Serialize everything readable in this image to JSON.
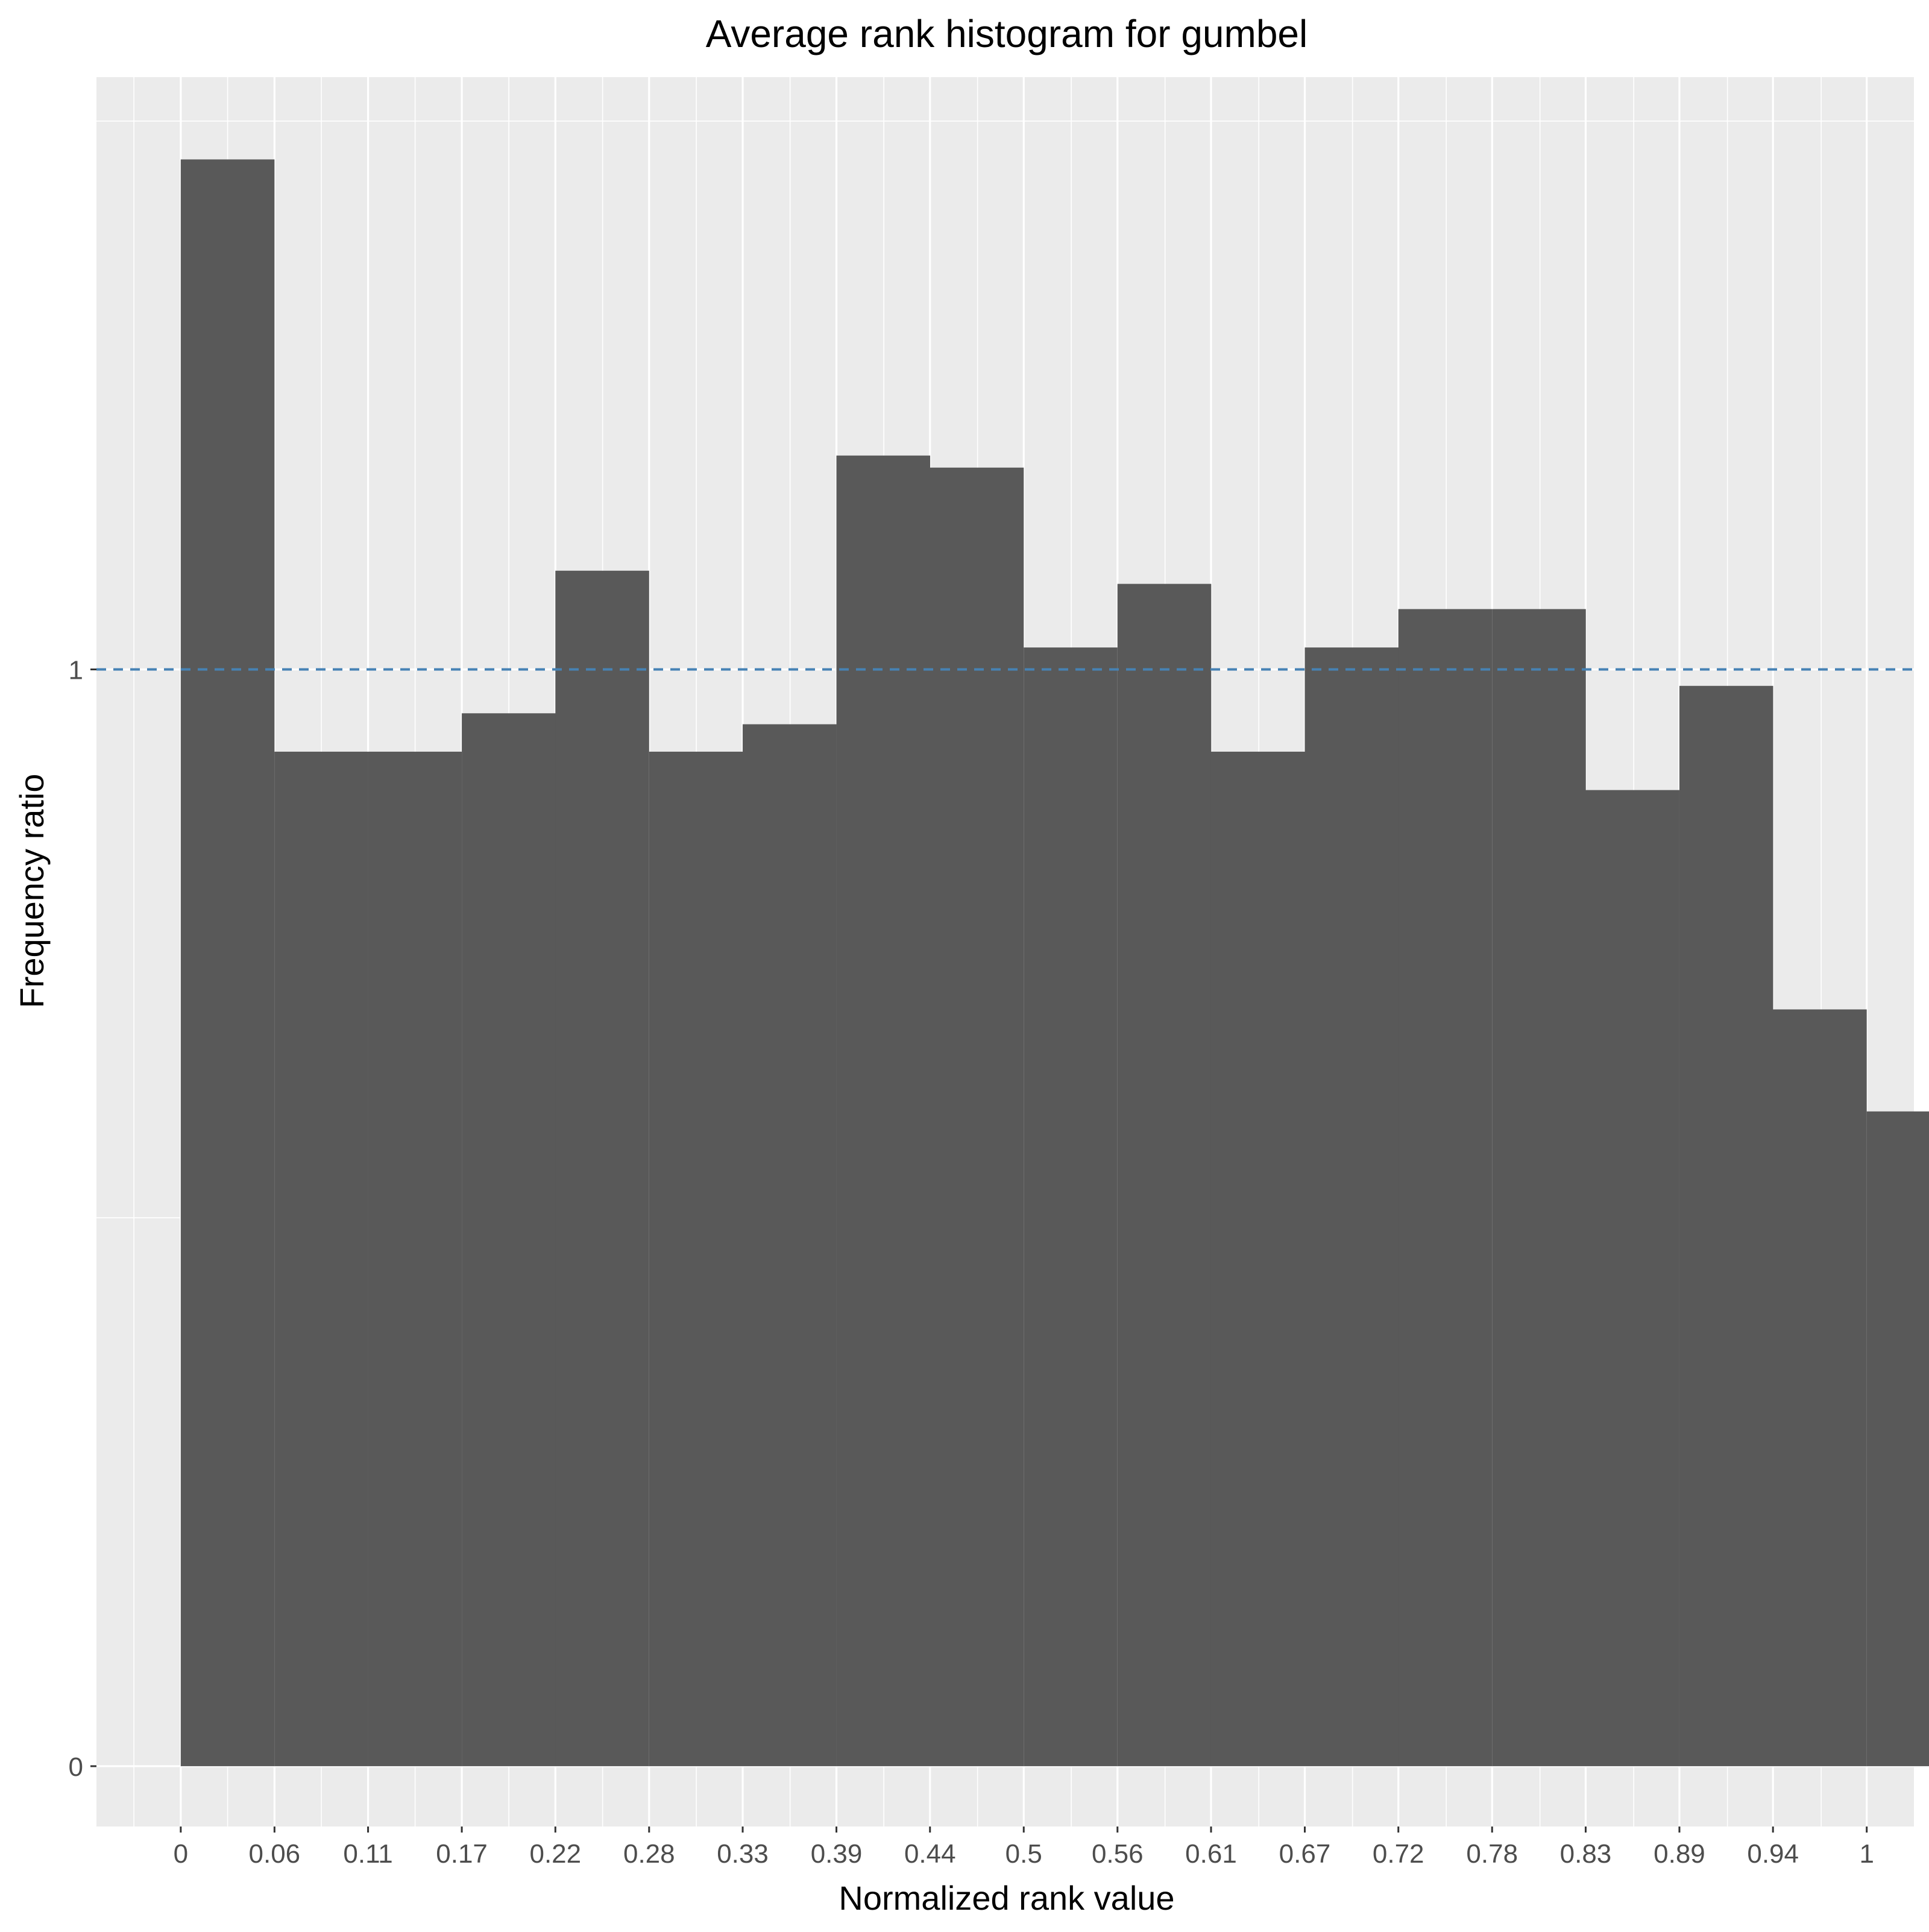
{
  "chart_data": {
    "type": "bar",
    "title": "Average rank histogram for gumbel",
    "xlabel": "Normalized rank value",
    "ylabel": "Frequency ratio",
    "x_tick_labels": [
      "0",
      "0.06",
      "0.11",
      "0.17",
      "0.22",
      "0.28",
      "0.33",
      "0.39",
      "0.44",
      "0.5",
      "0.56",
      "0.61",
      "0.67",
      "0.72",
      "0.78",
      "0.83",
      "0.89",
      "0.94",
      "1"
    ],
    "bin_edges": [
      0,
      0.0556,
      0.1111,
      0.1667,
      0.2222,
      0.2778,
      0.3333,
      0.3889,
      0.4444,
      0.5,
      0.5556,
      0.6111,
      0.6667,
      0.7222,
      0.7778,
      0.8333,
      0.8889,
      0.9444,
      1
    ],
    "values": [
      1.465,
      0.925,
      0.925,
      0.96,
      1.09,
      0.925,
      0.95,
      1.195,
      1.184,
      1.02,
      1.078,
      0.925,
      1.02,
      1.055,
      1.055,
      0.89,
      0.985,
      0.69,
      0.597
    ],
    "y_tick_values": [
      0,
      1
    ],
    "y_tick_labels": [
      "0",
      "1"
    ],
    "reference_line": {
      "y": 1,
      "style": "dashed",
      "color": "#4682b4"
    },
    "xlim": [
      -0.05,
      1.028
    ],
    "ylim": [
      -0.055,
      1.54
    ],
    "grid": true,
    "colors": {
      "bar": "#595959",
      "panel": "#ebebeb",
      "grid": "#ffffff"
    }
  }
}
